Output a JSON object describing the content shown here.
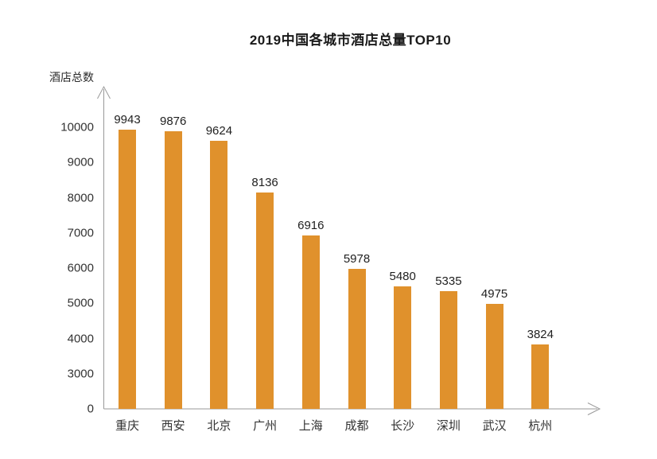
{
  "chart_data": {
    "type": "bar",
    "title": "2019中国各城市酒店总量TOP10",
    "ylabel": "酒店总数",
    "xlabel": "",
    "categories": [
      "重庆",
      "西安",
      "北京",
      "广州",
      "上海",
      "成都",
      "长沙",
      "深圳",
      "武汉",
      "杭州"
    ],
    "values": [
      9943,
      9876,
      9624,
      8136,
      6916,
      5978,
      5480,
      5335,
      4975,
      3824
    ],
    "yticks": [
      10000,
      9000,
      8000,
      7000,
      6000,
      5000,
      4000,
      3000,
      0
    ],
    "ylim": [
      0,
      10000
    ],
    "axis_style": "broken axis: interval 0-3000 compressed to a single tick step",
    "grid": false,
    "legend": false,
    "data_labels_shown": true,
    "colors": {
      "bar": "#E0912C",
      "axis": "#999999",
      "title_text": "#1a1a1a",
      "label_text": "#333333",
      "background": "#ffffff"
    }
  }
}
